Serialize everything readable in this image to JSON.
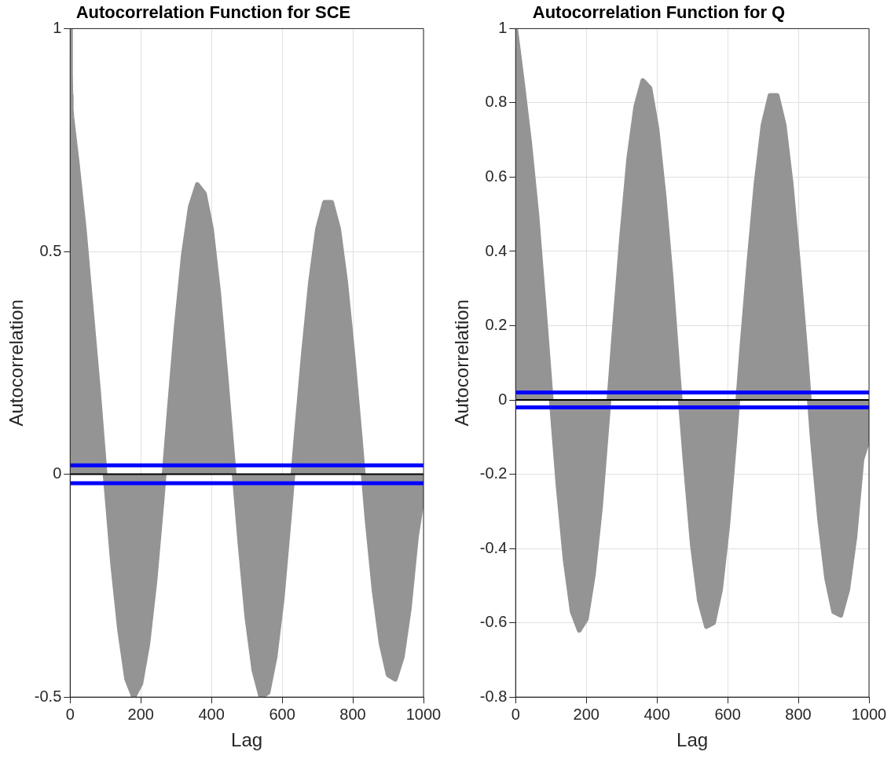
{
  "chart_data": [
    {
      "type": "area",
      "title": "Autocorrelation Function for SCE",
      "xlabel": "Lag",
      "ylabel": "Autocorrelation",
      "x": [
        0,
        1,
        2,
        3,
        5,
        20,
        40,
        60,
        80,
        100,
        120,
        140,
        160,
        180,
        200,
        220,
        240,
        260,
        280,
        300,
        320,
        340,
        360,
        380,
        400,
        420,
        440,
        460,
        480,
        500,
        520,
        540,
        560,
        580,
        600,
        620,
        640,
        660,
        680,
        700,
        720,
        740,
        760,
        780,
        800,
        820,
        840,
        860,
        880,
        900,
        920,
        940,
        960,
        980,
        1000
      ],
      "series": [
        {
          "color": "#949494",
          "values": [
            1,
            0.9,
            0.85,
            0.82,
            0.8,
            0.7,
            0.55,
            0.37,
            0.19,
            -0.01,
            -0.2,
            -0.35,
            -0.46,
            -0.5,
            -0.47,
            -0.38,
            -0.24,
            -0.06,
            0.14,
            0.33,
            0.49,
            0.6,
            0.65,
            0.63,
            0.55,
            0.41,
            0.23,
            0.04,
            -0.15,
            -0.32,
            -0.44,
            -0.5,
            -0.49,
            -0.41,
            -0.28,
            -0.1,
            0.09,
            0.27,
            0.43,
            0.55,
            0.61,
            0.61,
            0.55,
            0.43,
            0.27,
            0.09,
            -0.1,
            -0.26,
            -0.38,
            -0.45,
            -0.46,
            -0.41,
            -0.3,
            -0.14,
            -0.04
          ]
        }
      ],
      "xlim": [
        0,
        1000
      ],
      "xticks": [
        0,
        200,
        400,
        600,
        800,
        1000
      ],
      "ylim": [
        -0.5,
        1
      ],
      "yticks": [
        -0.5,
        0,
        0.5,
        1
      ],
      "grid": true,
      "marker": "none",
      "ref_lines": [
        {
          "axis": "y",
          "value": 0,
          "color": "#000000"
        },
        {
          "axis": "y",
          "value": 0.02,
          "color": "#0000ff"
        },
        {
          "axis": "y",
          "value": -0.02,
          "color": "#0000ff"
        }
      ]
    },
    {
      "type": "area",
      "title": "Autocorrelation Function for Q",
      "xlabel": "Lag",
      "ylabel": "Autocorrelation",
      "x": [
        0,
        20,
        40,
        60,
        80,
        100,
        120,
        140,
        160,
        180,
        200,
        220,
        240,
        260,
        280,
        300,
        320,
        340,
        360,
        380,
        400,
        420,
        440,
        460,
        480,
        500,
        520,
        540,
        560,
        580,
        600,
        620,
        640,
        660,
        680,
        700,
        720,
        740,
        760,
        780,
        800,
        820,
        840,
        860,
        880,
        900,
        920,
        940,
        960,
        980,
        1000
      ],
      "series": [
        {
          "color": "#949494",
          "values": [
            1,
            0.85,
            0.69,
            0.5,
            0.26,
            0.01,
            -0.23,
            -0.43,
            -0.57,
            -0.62,
            -0.59,
            -0.47,
            -0.29,
            -0.05,
            0.2,
            0.44,
            0.65,
            0.79,
            0.86,
            0.84,
            0.73,
            0.55,
            0.33,
            0.07,
            -0.17,
            -0.39,
            -0.54,
            -0.61,
            -0.6,
            -0.51,
            -0.34,
            -0.11,
            0.14,
            0.37,
            0.58,
            0.74,
            0.82,
            0.82,
            0.74,
            0.58,
            0.37,
            0.14,
            -0.11,
            -0.32,
            -0.48,
            -0.57,
            -0.58,
            -0.51,
            -0.37,
            -0.16,
            -0.1
          ]
        }
      ],
      "xlim": [
        0,
        1000
      ],
      "xticks": [
        0,
        200,
        400,
        600,
        800,
        1000
      ],
      "ylim": [
        -0.8,
        1
      ],
      "yticks": [
        -0.8,
        -0.6,
        -0.4,
        -0.2,
        0,
        0.2,
        0.4,
        0.6,
        0.8,
        1
      ],
      "grid": true,
      "marker": "none",
      "ref_lines": [
        {
          "axis": "y",
          "value": 0,
          "color": "#000000"
        },
        {
          "axis": "y",
          "value": 0.02,
          "color": "#0000ff"
        },
        {
          "axis": "y",
          "value": -0.02,
          "color": "#0000ff"
        }
      ]
    }
  ]
}
